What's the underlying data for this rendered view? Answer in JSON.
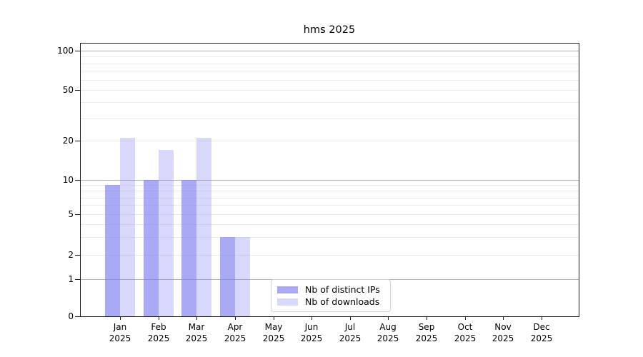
{
  "chart_data": {
    "type": "bar",
    "title": "hms 2025",
    "categories": [
      "Jan",
      "Feb",
      "Mar",
      "Apr",
      "May",
      "Jun",
      "Jul",
      "Aug",
      "Sep",
      "Oct",
      "Nov",
      "Dec"
    ],
    "category_year": "2025",
    "series": [
      {
        "name": "Nb of distinct IPs",
        "key": "distinct-ips",
        "color": "rgba(125,125,238,0.66)",
        "values": [
          9,
          10,
          10,
          3,
          0,
          0,
          0,
          0,
          0,
          0,
          0,
          0
        ]
      },
      {
        "name": "Nb of downloads",
        "key": "downloads",
        "color": "rgba(125,125,238,0.30)",
        "values": [
          21,
          17,
          21,
          3,
          0,
          0,
          0,
          0,
          0,
          0,
          0,
          0
        ]
      }
    ],
    "y_axis": {
      "scale": "symlog",
      "tick_values": [
        0,
        1,
        2,
        5,
        10,
        20,
        50,
        100
      ],
      "ylim": [
        0,
        115
      ]
    },
    "grid": {
      "on": true,
      "major_lines": [
        1,
        10,
        100
      ],
      "minor_lines": [
        2,
        3,
        4,
        5,
        6,
        7,
        8,
        9,
        20,
        30,
        40,
        50,
        60,
        70,
        80,
        90
      ],
      "major_color": "#b2b2b2",
      "minor_color": "#ebebeb"
    },
    "legend": {
      "position": "lower-center",
      "items": [
        "Nb of distinct IPs",
        "Nb of downloads"
      ]
    },
    "xlabel": "",
    "ylabel": ""
  }
}
